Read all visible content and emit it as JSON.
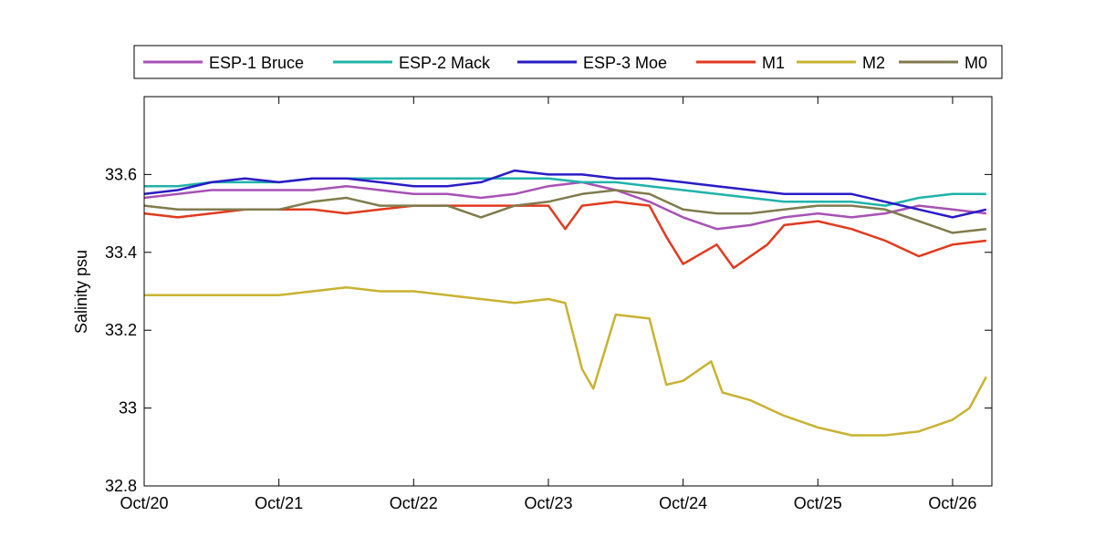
{
  "chart_data": {
    "type": "line",
    "title": "",
    "xlabel": "",
    "ylabel": "Salinity psu",
    "xlim": [
      "2012-10-20T00:00",
      "2012-10-26T07:00"
    ],
    "ylim": [
      32.8,
      33.8
    ],
    "x_ticks": [
      "Oct/20",
      "Oct/21",
      "Oct/22",
      "Oct/23",
      "Oct/24",
      "Oct/25",
      "Oct/26"
    ],
    "y_ticks": [
      "32.8",
      "33",
      "33.2",
      "33.4",
      "33.6"
    ],
    "grid": false,
    "legend_position": "top",
    "series": [
      {
        "name": "ESP-1 Bruce",
        "color": "#a751b5",
        "points": [
          [
            "2012-10-20T00:00",
            33.54
          ],
          [
            "2012-10-20T06:00",
            33.55
          ],
          [
            "2012-10-20T12:00",
            33.56
          ],
          [
            "2012-10-20T18:00",
            33.56
          ],
          [
            "2012-10-21T00:00",
            33.56
          ],
          [
            "2012-10-21T06:00",
            33.56
          ],
          [
            "2012-10-21T12:00",
            33.57
          ],
          [
            "2012-10-21T18:00",
            33.56
          ],
          [
            "2012-10-22T00:00",
            33.55
          ],
          [
            "2012-10-22T06:00",
            33.55
          ],
          [
            "2012-10-22T12:00",
            33.54
          ],
          [
            "2012-10-22T18:00",
            33.55
          ],
          [
            "2012-10-23T00:00",
            33.57
          ],
          [
            "2012-10-23T06:00",
            33.58
          ],
          [
            "2012-10-23T12:00",
            33.56
          ],
          [
            "2012-10-23T18:00",
            33.53
          ],
          [
            "2012-10-24T00:00",
            33.49
          ],
          [
            "2012-10-24T06:00",
            33.46
          ],
          [
            "2012-10-24T12:00",
            33.47
          ],
          [
            "2012-10-24T18:00",
            33.49
          ],
          [
            "2012-10-25T00:00",
            33.5
          ],
          [
            "2012-10-25T06:00",
            33.49
          ],
          [
            "2012-10-25T12:00",
            33.5
          ],
          [
            "2012-10-25T18:00",
            33.52
          ],
          [
            "2012-10-26T00:00",
            33.51
          ],
          [
            "2012-10-26T06:00",
            33.5
          ]
        ]
      },
      {
        "name": "ESP-2 Mack",
        "color": "#1fb3a9",
        "points": [
          [
            "2012-10-20T00:00",
            33.57
          ],
          [
            "2012-10-20T06:00",
            33.57
          ],
          [
            "2012-10-20T12:00",
            33.58
          ],
          [
            "2012-10-20T18:00",
            33.58
          ],
          [
            "2012-10-21T00:00",
            33.58
          ],
          [
            "2012-10-21T06:00",
            33.59
          ],
          [
            "2012-10-21T12:00",
            33.59
          ],
          [
            "2012-10-21T18:00",
            33.59
          ],
          [
            "2012-10-22T00:00",
            33.59
          ],
          [
            "2012-10-22T06:00",
            33.59
          ],
          [
            "2012-10-22T12:00",
            33.59
          ],
          [
            "2012-10-22T18:00",
            33.59
          ],
          [
            "2012-10-23T00:00",
            33.59
          ],
          [
            "2012-10-23T06:00",
            33.58
          ],
          [
            "2012-10-23T12:00",
            33.58
          ],
          [
            "2012-10-23T18:00",
            33.57
          ],
          [
            "2012-10-24T00:00",
            33.56
          ],
          [
            "2012-10-24T06:00",
            33.55
          ],
          [
            "2012-10-24T12:00",
            33.54
          ],
          [
            "2012-10-24T18:00",
            33.53
          ],
          [
            "2012-10-25T00:00",
            33.53
          ],
          [
            "2012-10-25T06:00",
            33.53
          ],
          [
            "2012-10-25T12:00",
            33.52
          ],
          [
            "2012-10-25T18:00",
            33.54
          ],
          [
            "2012-10-26T00:00",
            33.55
          ],
          [
            "2012-10-26T06:00",
            33.55
          ]
        ]
      },
      {
        "name": "ESP-3 Moe",
        "color": "#2a1bc6",
        "points": [
          [
            "2012-10-20T00:00",
            33.55
          ],
          [
            "2012-10-20T06:00",
            33.56
          ],
          [
            "2012-10-20T12:00",
            33.58
          ],
          [
            "2012-10-20T18:00",
            33.59
          ],
          [
            "2012-10-21T00:00",
            33.58
          ],
          [
            "2012-10-21T06:00",
            33.59
          ],
          [
            "2012-10-21T12:00",
            33.59
          ],
          [
            "2012-10-21T18:00",
            33.58
          ],
          [
            "2012-10-22T00:00",
            33.57
          ],
          [
            "2012-10-22T06:00",
            33.57
          ],
          [
            "2012-10-22T12:00",
            33.58
          ],
          [
            "2012-10-22T18:00",
            33.61
          ],
          [
            "2012-10-23T00:00",
            33.6
          ],
          [
            "2012-10-23T06:00",
            33.6
          ],
          [
            "2012-10-23T12:00",
            33.59
          ],
          [
            "2012-10-23T18:00",
            33.59
          ],
          [
            "2012-10-24T00:00",
            33.58
          ],
          [
            "2012-10-24T06:00",
            33.57
          ],
          [
            "2012-10-24T12:00",
            33.56
          ],
          [
            "2012-10-24T18:00",
            33.55
          ],
          [
            "2012-10-25T00:00",
            33.55
          ],
          [
            "2012-10-25T06:00",
            33.55
          ],
          [
            "2012-10-25T12:00",
            33.53
          ],
          [
            "2012-10-25T18:00",
            33.51
          ],
          [
            "2012-10-26T00:00",
            33.49
          ],
          [
            "2012-10-26T06:00",
            33.51
          ]
        ]
      },
      {
        "name": "M1",
        "color": "#e13a1e",
        "points": [
          [
            "2012-10-20T00:00",
            33.5
          ],
          [
            "2012-10-20T06:00",
            33.49
          ],
          [
            "2012-10-20T12:00",
            33.5
          ],
          [
            "2012-10-20T18:00",
            33.51
          ],
          [
            "2012-10-21T00:00",
            33.51
          ],
          [
            "2012-10-21T06:00",
            33.51
          ],
          [
            "2012-10-21T12:00",
            33.5
          ],
          [
            "2012-10-21T18:00",
            33.51
          ],
          [
            "2012-10-22T00:00",
            33.52
          ],
          [
            "2012-10-22T06:00",
            33.52
          ],
          [
            "2012-10-22T12:00",
            33.52
          ],
          [
            "2012-10-22T18:00",
            33.52
          ],
          [
            "2012-10-23T00:00",
            33.52
          ],
          [
            "2012-10-23T03:00",
            33.46
          ],
          [
            "2012-10-23T06:00",
            33.52
          ],
          [
            "2012-10-23T12:00",
            33.53
          ],
          [
            "2012-10-23T18:00",
            33.52
          ],
          [
            "2012-10-23T21:00",
            33.44
          ],
          [
            "2012-10-24T00:00",
            33.37
          ],
          [
            "2012-10-24T06:00",
            33.42
          ],
          [
            "2012-10-24T09:00",
            33.36
          ],
          [
            "2012-10-24T15:00",
            33.42
          ],
          [
            "2012-10-24T18:00",
            33.47
          ],
          [
            "2012-10-25T00:00",
            33.48
          ],
          [
            "2012-10-25T06:00",
            33.46
          ],
          [
            "2012-10-25T12:00",
            33.43
          ],
          [
            "2012-10-25T18:00",
            33.39
          ],
          [
            "2012-10-26T00:00",
            33.42
          ],
          [
            "2012-10-26T06:00",
            33.43
          ]
        ]
      },
      {
        "name": "M2",
        "color": "#c9b232",
        "points": [
          [
            "2012-10-20T00:00",
            33.29
          ],
          [
            "2012-10-20T06:00",
            33.29
          ],
          [
            "2012-10-20T12:00",
            33.29
          ],
          [
            "2012-10-20T18:00",
            33.29
          ],
          [
            "2012-10-21T00:00",
            33.29
          ],
          [
            "2012-10-21T06:00",
            33.3
          ],
          [
            "2012-10-21T12:00",
            33.31
          ],
          [
            "2012-10-21T18:00",
            33.3
          ],
          [
            "2012-10-22T00:00",
            33.3
          ],
          [
            "2012-10-22T06:00",
            33.29
          ],
          [
            "2012-10-22T12:00",
            33.28
          ],
          [
            "2012-10-22T18:00",
            33.27
          ],
          [
            "2012-10-23T00:00",
            33.28
          ],
          [
            "2012-10-23T03:00",
            33.27
          ],
          [
            "2012-10-23T06:00",
            33.1
          ],
          [
            "2012-10-23T08:00",
            33.05
          ],
          [
            "2012-10-23T12:00",
            33.24
          ],
          [
            "2012-10-23T18:00",
            33.23
          ],
          [
            "2012-10-23T21:00",
            33.06
          ],
          [
            "2012-10-24T00:00",
            33.07
          ],
          [
            "2012-10-24T05:00",
            33.12
          ],
          [
            "2012-10-24T07:00",
            33.04
          ],
          [
            "2012-10-24T12:00",
            33.02
          ],
          [
            "2012-10-24T18:00",
            32.98
          ],
          [
            "2012-10-25T00:00",
            32.95
          ],
          [
            "2012-10-25T06:00",
            32.93
          ],
          [
            "2012-10-25T12:00",
            32.93
          ],
          [
            "2012-10-25T18:00",
            32.94
          ],
          [
            "2012-10-26T00:00",
            32.97
          ],
          [
            "2012-10-26T03:00",
            33.0
          ],
          [
            "2012-10-26T06:00",
            33.08
          ]
        ]
      },
      {
        "name": "M0",
        "color": "#807b4c",
        "points": [
          [
            "2012-10-20T00:00",
            33.52
          ],
          [
            "2012-10-20T06:00",
            33.51
          ],
          [
            "2012-10-20T12:00",
            33.51
          ],
          [
            "2012-10-20T18:00",
            33.51
          ],
          [
            "2012-10-21T00:00",
            33.51
          ],
          [
            "2012-10-21T06:00",
            33.53
          ],
          [
            "2012-10-21T12:00",
            33.54
          ],
          [
            "2012-10-21T18:00",
            33.52
          ],
          [
            "2012-10-22T00:00",
            33.52
          ],
          [
            "2012-10-22T06:00",
            33.52
          ],
          [
            "2012-10-22T12:00",
            33.49
          ],
          [
            "2012-10-22T18:00",
            33.52
          ],
          [
            "2012-10-23T00:00",
            33.53
          ],
          [
            "2012-10-23T06:00",
            33.55
          ],
          [
            "2012-10-23T12:00",
            33.56
          ],
          [
            "2012-10-23T18:00",
            33.55
          ],
          [
            "2012-10-24T00:00",
            33.51
          ],
          [
            "2012-10-24T06:00",
            33.5
          ],
          [
            "2012-10-24T12:00",
            33.5
          ],
          [
            "2012-10-24T18:00",
            33.51
          ],
          [
            "2012-10-25T00:00",
            33.52
          ],
          [
            "2012-10-25T06:00",
            33.52
          ],
          [
            "2012-10-25T12:00",
            33.51
          ],
          [
            "2012-10-25T18:00",
            33.48
          ],
          [
            "2012-10-26T00:00",
            33.45
          ],
          [
            "2012-10-26T06:00",
            33.46
          ]
        ]
      }
    ]
  }
}
